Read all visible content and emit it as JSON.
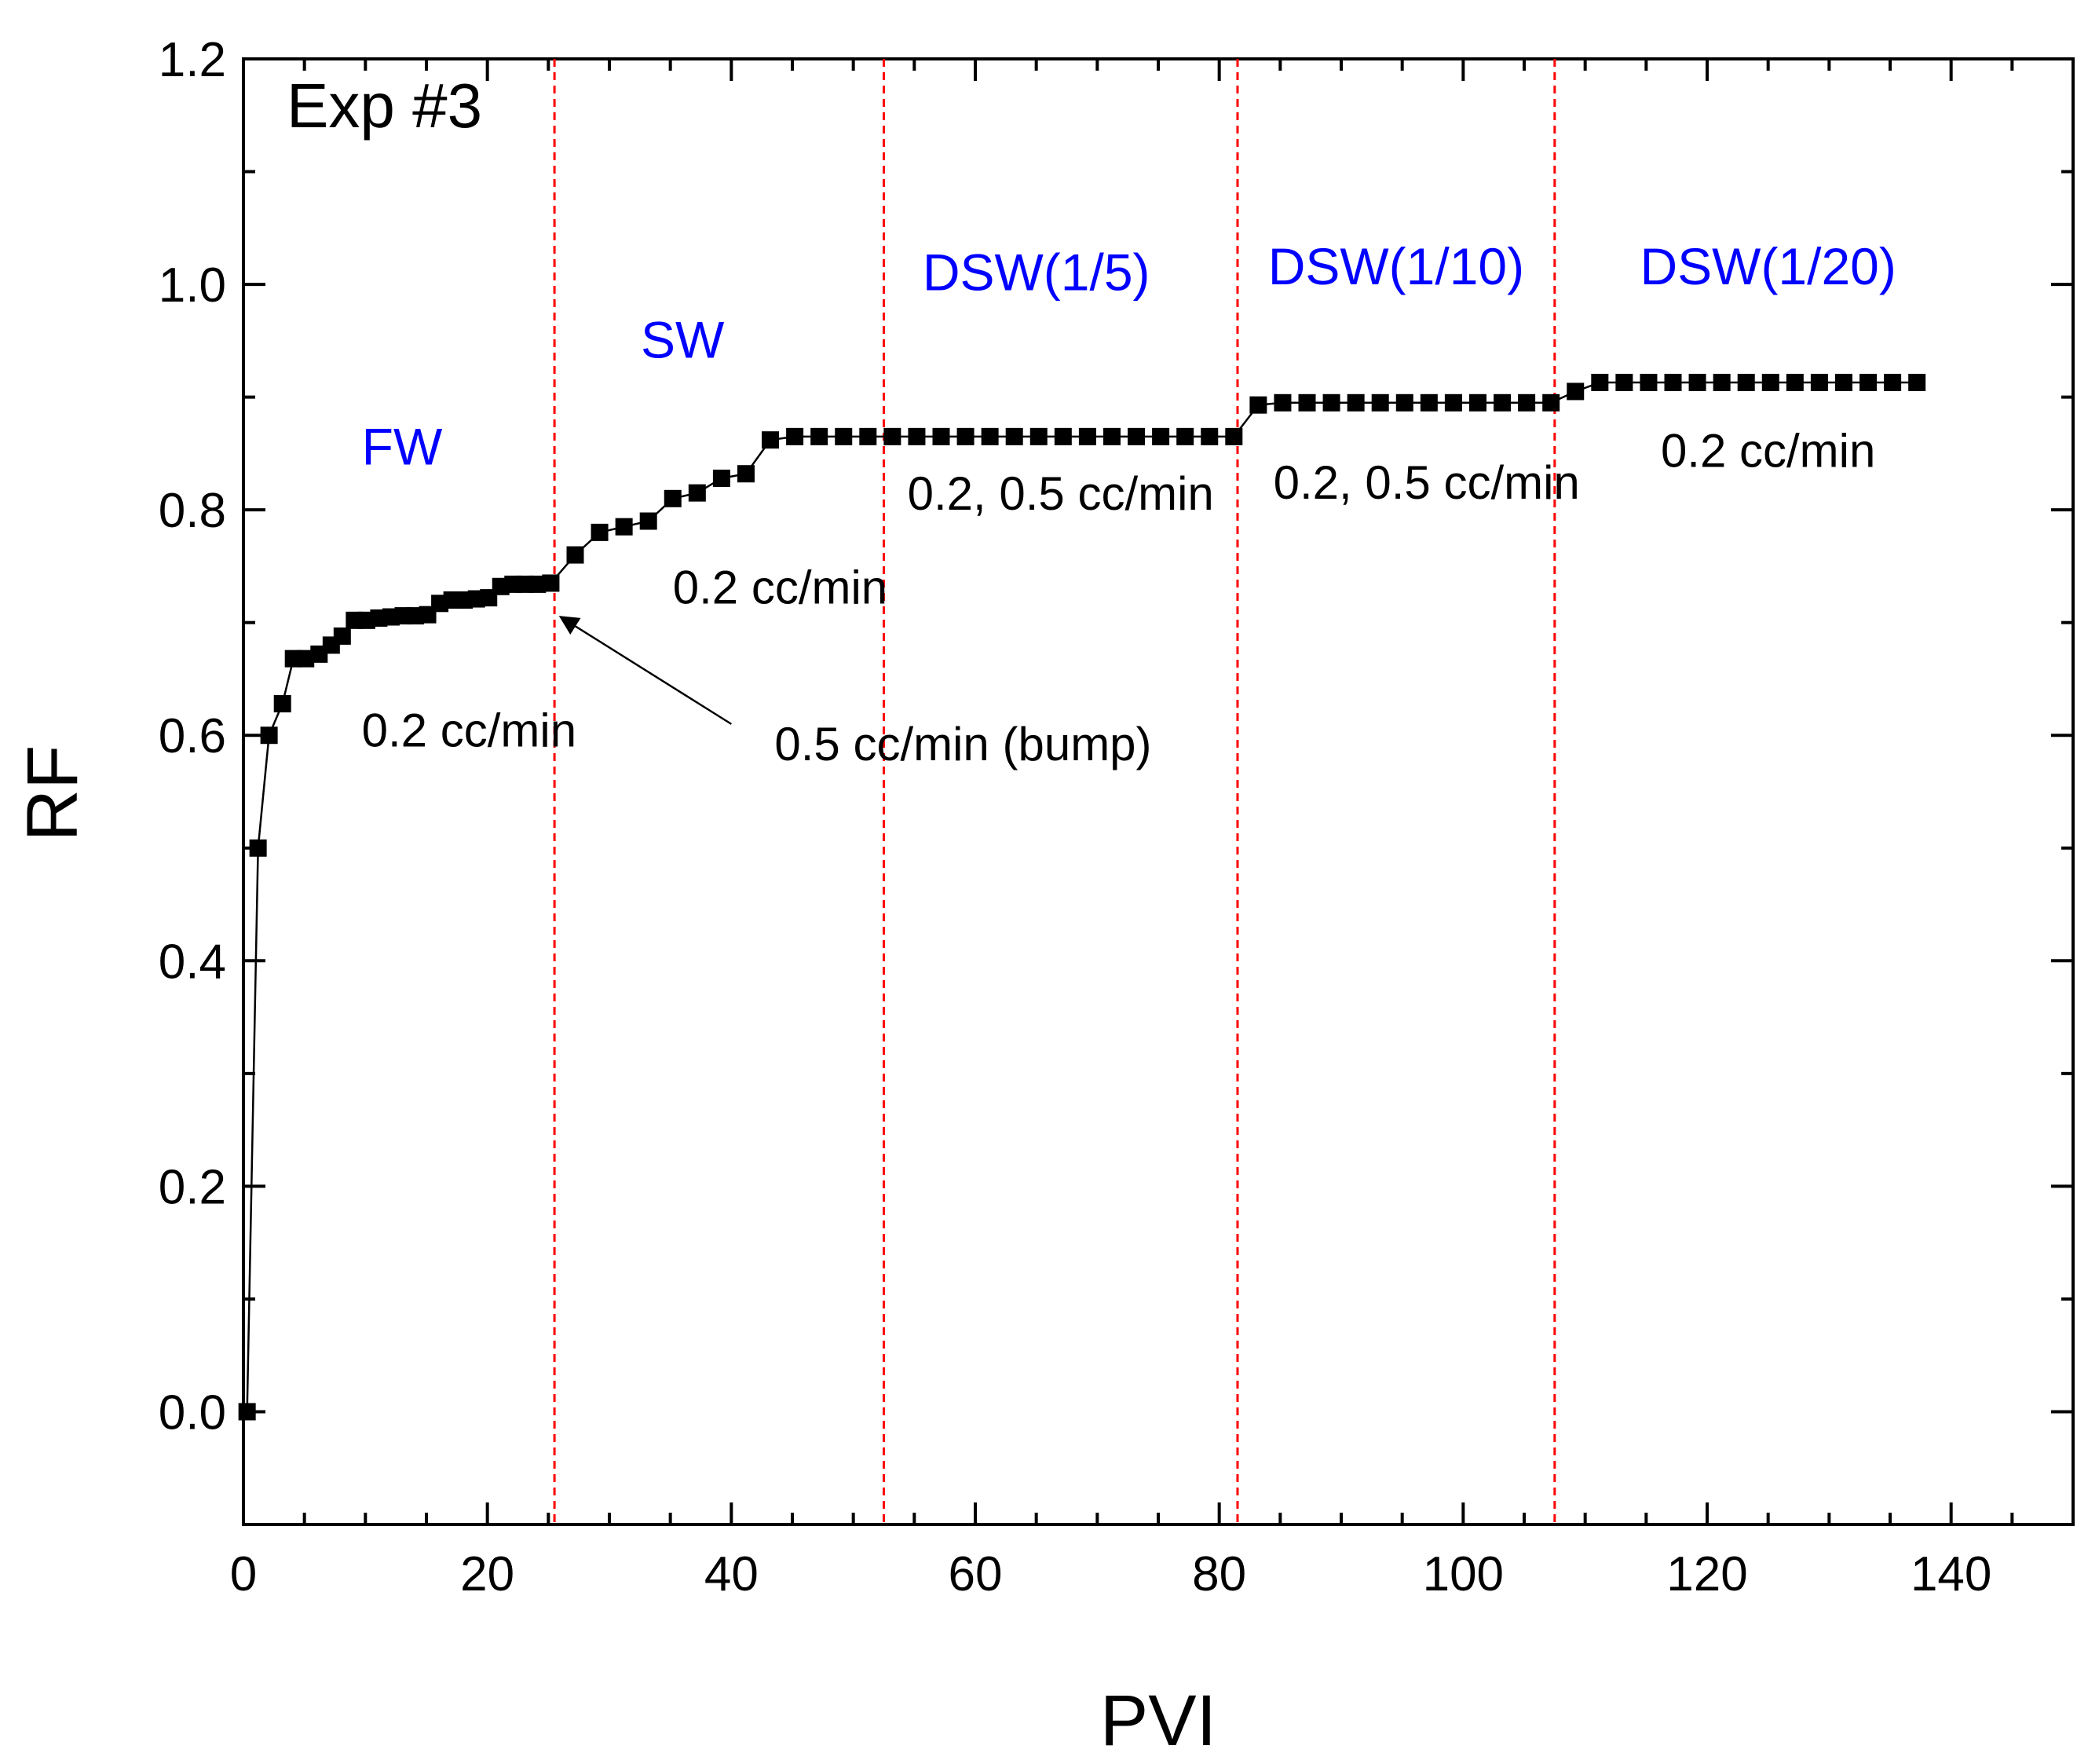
{
  "colors": {
    "data": "#000000",
    "boundary": "#ff0000",
    "phase_label": "#0000ff",
    "background": "#ffffff"
  },
  "chart_data": {
    "type": "scatter",
    "title": "Exp #3",
    "xlabel": "PVI",
    "ylabel": "RF",
    "xlim": [
      0,
      150
    ],
    "ylim": [
      -0.1,
      1.2
    ],
    "xticks": [
      0,
      20,
      40,
      60,
      80,
      100,
      120,
      140
    ],
    "yticks": [
      0.0,
      0.2,
      0.4,
      0.6,
      0.8,
      1.0,
      1.2
    ],
    "x_minor_step": 5,
    "y_minor_step": 0.1,
    "grid": false,
    "series": [
      {
        "name": "RF",
        "marker": "square",
        "x": [
          0.3,
          1.2,
          2.1,
          3.2,
          4.1,
          5.1,
          6.2,
          7.2,
          8.1,
          9.1,
          10.1,
          11.1,
          12.1,
          13.1,
          14.1,
          15.1,
          16.1,
          17.1,
          18.1,
          19.1,
          20.1,
          21.1,
          22.1,
          23.1,
          24.1,
          25.2,
          27.2,
          29.2,
          31.2,
          33.2,
          35.2,
          37.2,
          39.2,
          41.2,
          43.2,
          45.2,
          47.2,
          49.2,
          51.2,
          53.2,
          55.2,
          57.2,
          59.2,
          61.2,
          63.2,
          65.2,
          67.2,
          69.2,
          71.2,
          73.2,
          75.2,
          77.2,
          79.2,
          81.2,
          83.2,
          85.2,
          87.2,
          89.2,
          91.2,
          93.2,
          95.2,
          97.2,
          99.2,
          101.2,
          103.2,
          105.2,
          107.2,
          109.2,
          111.2,
          113.2,
          115.2,
          117.2,
          119.2,
          121.2,
          123.2,
          125.2,
          127.2,
          129.2,
          131.2,
          133.2,
          135.2,
          137.2
        ],
        "y": [
          0.0,
          0.5,
          0.6,
          0.628,
          0.668,
          0.668,
          0.672,
          0.68,
          0.688,
          0.702,
          0.702,
          0.704,
          0.705,
          0.706,
          0.706,
          0.707,
          0.717,
          0.72,
          0.72,
          0.721,
          0.722,
          0.732,
          0.734,
          0.734,
          0.734,
          0.735,
          0.76,
          0.78,
          0.785,
          0.79,
          0.81,
          0.815,
          0.828,
          0.832,
          0.862,
          0.865,
          0.865,
          0.865,
          0.865,
          0.865,
          0.865,
          0.865,
          0.865,
          0.865,
          0.865,
          0.865,
          0.865,
          0.865,
          0.865,
          0.865,
          0.865,
          0.865,
          0.865,
          0.865,
          0.893,
          0.895,
          0.895,
          0.895,
          0.895,
          0.895,
          0.895,
          0.895,
          0.895,
          0.895,
          0.895,
          0.895,
          0.895,
          0.905,
          0.913,
          0.913,
          0.913,
          0.913,
          0.913,
          0.913,
          0.913,
          0.913,
          0.913,
          0.913,
          0.913,
          0.913,
          0.913,
          0.913
        ]
      }
    ],
    "phase_boundaries": [
      25.5,
      52.5,
      81.5,
      107.5
    ],
    "phase_labels": [
      {
        "text": "FW",
        "x": 13.0,
        "y": 0.84
      },
      {
        "text": "SW",
        "x": 36.0,
        "y": 0.935
      },
      {
        "text": "DSW(1/5)",
        "x": 65.0,
        "y": 0.995
      },
      {
        "text": "DSW(1/10)",
        "x": 94.5,
        "y": 1.0
      },
      {
        "text": "DSW(1/20)",
        "x": 125.0,
        "y": 1.0
      }
    ],
    "rate_labels": [
      {
        "text": "0.2 cc/min",
        "x": 18.5,
        "y": 0.59
      },
      {
        "text": "0.2 cc/min",
        "x": 44.0,
        "y": 0.717
      },
      {
        "text": "0.2, 0.5 cc/min",
        "x": 67.0,
        "y": 0.8
      },
      {
        "text": "0.2, 0.5 cc/min",
        "x": 97.0,
        "y": 0.81
      },
      {
        "text": "0.2 cc/min",
        "x": 125.0,
        "y": 0.838
      }
    ],
    "annotations": [
      {
        "text": "0.5 cc/min (bump)",
        "x": 59.0,
        "y": 0.578,
        "arrow_from": [
          40.0,
          0.61
        ],
        "arrow_to": [
          26.0,
          0.705
        ]
      }
    ]
  }
}
